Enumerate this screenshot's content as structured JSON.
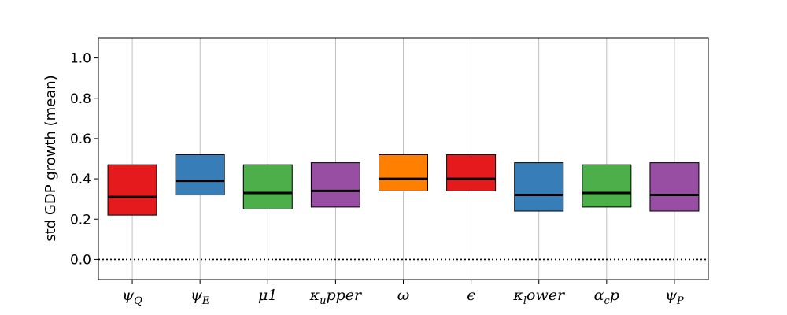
{
  "chart_data": {
    "type": "box",
    "title": "",
    "xlabel": "",
    "ylabel": "std GDP growth (mean)",
    "ylim": [
      -0.1,
      1.1
    ],
    "yticks": [
      "0.0",
      "0.2",
      "0.4",
      "0.6",
      "0.8",
      "1.0"
    ],
    "grid": "vertical",
    "reference_line": {
      "y": 0.0,
      "style": "dotted"
    },
    "categories": [
      {
        "label": "ψ",
        "sub": "Q",
        "q1": 0.22,
        "q3": 0.47,
        "median": 0.31,
        "color": "#e41a1c"
      },
      {
        "label": "ψ",
        "sub": "E",
        "q1": 0.32,
        "q3": 0.52,
        "median": 0.39,
        "color": "#377eb8"
      },
      {
        "label": "μ1",
        "sub": "",
        "q1": 0.25,
        "q3": 0.47,
        "median": 0.33,
        "color": "#4daf4a"
      },
      {
        "label": "κ",
        "sub": "u",
        "tail": "pper",
        "q1": 0.26,
        "q3": 0.48,
        "median": 0.34,
        "color": "#984ea3"
      },
      {
        "label": "ω",
        "sub": "",
        "q1": 0.34,
        "q3": 0.52,
        "median": 0.4,
        "color": "#ff7f00"
      },
      {
        "label": "ϵ",
        "sub": "",
        "q1": 0.34,
        "q3": 0.52,
        "median": 0.4,
        "color": "#e41a1c"
      },
      {
        "label": "κ",
        "sub": "l",
        "tail": "ower",
        "q1": 0.24,
        "q3": 0.48,
        "median": 0.32,
        "color": "#377eb8"
      },
      {
        "label": "α",
        "sub": "c",
        "tail": "p",
        "q1": 0.26,
        "q3": 0.47,
        "median": 0.33,
        "color": "#4daf4a"
      },
      {
        "label": "ψ",
        "sub": "P",
        "q1": 0.24,
        "q3": 0.48,
        "median": 0.32,
        "color": "#984ea3"
      }
    ]
  }
}
